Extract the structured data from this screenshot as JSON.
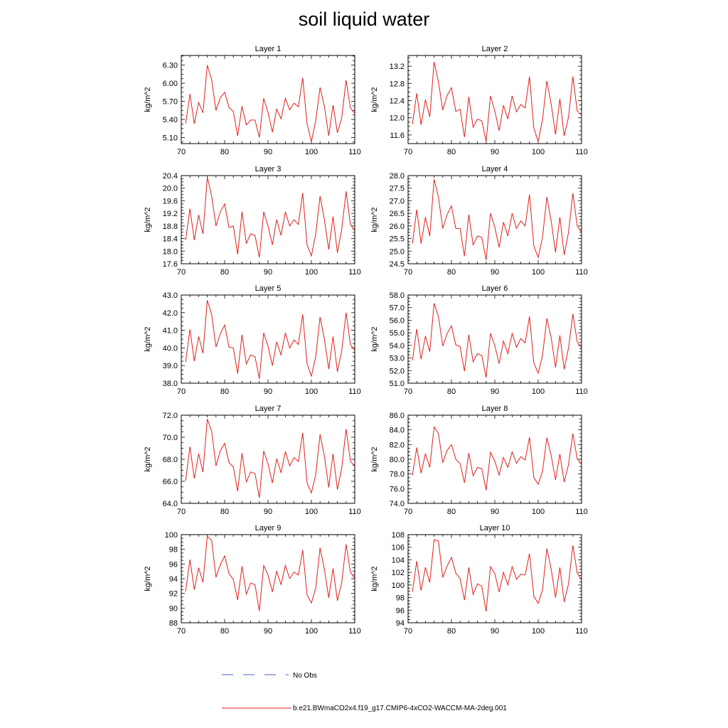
{
  "title": "soil liquid water",
  "legend": {
    "obs_label": "No Obs",
    "obs_color": "#4a5cc8",
    "model_label": "b.e21.BWmaCO2x4.f19_g17.CMIP6-4xCO2-WACCM-MA-2deg.001",
    "model_color": "#e0201b"
  },
  "chart_data": [
    {
      "type": "line",
      "title": "Layer 1",
      "ylabel": "kg/m^2",
      "xlim": [
        70,
        110
      ],
      "xticks": [
        70,
        80,
        90,
        100,
        110
      ],
      "ylim": [
        5.0,
        6.46
      ],
      "yticks": [
        "5.10",
        "5.40",
        "5.70",
        "6.00",
        "6.30"
      ],
      "ytick_values": [
        5.1,
        5.4,
        5.7,
        6.0,
        6.3
      ],
      "x": [
        71,
        72,
        73,
        74,
        75,
        76,
        77,
        78,
        79,
        80,
        81,
        82,
        83,
        84,
        85,
        86,
        87,
        88,
        89,
        90,
        91,
        92,
        93,
        94,
        95,
        96,
        97,
        98,
        99,
        100,
        101,
        102,
        103,
        104,
        105,
        106,
        107,
        108,
        109,
        110
      ],
      "values": [
        5.33,
        5.82,
        5.33,
        5.68,
        5.51,
        6.3,
        6.06,
        5.55,
        5.76,
        5.85,
        5.6,
        5.53,
        5.13,
        5.62,
        5.31,
        5.39,
        5.39,
        5.1,
        5.75,
        5.52,
        5.19,
        5.57,
        5.41,
        5.75,
        5.56,
        5.67,
        5.61,
        6.09,
        5.33,
        5.03,
        5.38,
        5.93,
        5.62,
        5.13,
        5.64,
        5.18,
        5.43,
        6.05,
        5.59,
        5.5
      ]
    },
    {
      "type": "line",
      "title": "Layer 2",
      "ylabel": "kg/m^2",
      "xlim": [
        70,
        110
      ],
      "xticks": [
        70,
        80,
        90,
        100,
        110
      ],
      "ylim": [
        11.4,
        13.45
      ],
      "yticks": [
        "11.6",
        "12.0",
        "12.4",
        "12.8",
        "13.2"
      ],
      "ytick_values": [
        11.6,
        12.0,
        12.4,
        12.8,
        13.2
      ],
      "x": [
        71,
        72,
        73,
        74,
        75,
        76,
        77,
        78,
        79,
        80,
        81,
        82,
        83,
        84,
        85,
        86,
        87,
        88,
        89,
        90,
        91,
        92,
        93,
        94,
        95,
        96,
        97,
        98,
        99,
        100,
        101,
        102,
        103,
        104,
        105,
        106,
        107,
        108,
        109,
        110
      ],
      "values": [
        11.85,
        12.57,
        11.84,
        12.42,
        12.02,
        13.3,
        12.84,
        12.18,
        12.52,
        12.7,
        12.15,
        12.2,
        11.55,
        12.49,
        11.78,
        11.97,
        11.93,
        11.45,
        12.51,
        12.16,
        11.7,
        12.29,
        11.97,
        12.51,
        12.14,
        12.31,
        12.23,
        12.96,
        11.76,
        11.45,
        11.96,
        12.86,
        12.32,
        11.61,
        12.44,
        11.58,
        12.02,
        12.96,
        12.16,
        12.06
      ]
    },
    {
      "type": "line",
      "title": "Layer 3",
      "ylabel": "kg/m^2",
      "xlim": [
        70,
        110
      ],
      "xticks": [
        70,
        80,
        90,
        100,
        110
      ],
      "ylim": [
        17.6,
        20.4
      ],
      "yticks": [
        "17.6",
        "18.0",
        "18.4",
        "18.8",
        "19.2",
        "19.6",
        "20.0",
        "20.4"
      ],
      "ytick_values": [
        17.6,
        18.0,
        18.4,
        18.8,
        19.2,
        19.6,
        20.0,
        20.4
      ],
      "x": [
        71,
        72,
        73,
        74,
        75,
        76,
        77,
        78,
        79,
        80,
        81,
        82,
        83,
        84,
        85,
        86,
        87,
        88,
        89,
        90,
        91,
        92,
        93,
        94,
        95,
        96,
        97,
        98,
        99,
        100,
        101,
        102,
        103,
        104,
        105,
        106,
        107,
        108,
        109,
        110
      ],
      "values": [
        18.35,
        19.35,
        18.35,
        19.15,
        18.55,
        20.35,
        19.75,
        18.8,
        19.25,
        19.5,
        18.75,
        18.8,
        17.9,
        19.25,
        18.25,
        18.55,
        18.5,
        17.8,
        19.25,
        18.8,
        18.2,
        19.0,
        18.5,
        19.25,
        18.8,
        19.0,
        18.85,
        19.85,
        18.2,
        17.85,
        18.55,
        19.75,
        19.0,
        18.05,
        19.1,
        17.95,
        18.7,
        19.9,
        18.85,
        18.65
      ]
    },
    {
      "type": "line",
      "title": "Layer 4",
      "ylabel": "kg/m^2",
      "xlim": [
        70,
        110
      ],
      "xticks": [
        70,
        80,
        90,
        100,
        110
      ],
      "ylim": [
        24.5,
        28.0
      ],
      "yticks": [
        "24.5",
        "25.0",
        "25.5",
        "26.0",
        "26.5",
        "27.0",
        "27.5",
        "28.0"
      ],
      "ytick_values": [
        24.5,
        25.0,
        25.5,
        26.0,
        26.5,
        27.0,
        27.5,
        28.0
      ],
      "x": [
        71,
        72,
        73,
        74,
        75,
        76,
        77,
        78,
        79,
        80,
        81,
        82,
        83,
        84,
        85,
        86,
        87,
        88,
        89,
        90,
        91,
        92,
        93,
        94,
        95,
        96,
        97,
        98,
        99,
        100,
        101,
        102,
        103,
        104,
        105,
        106,
        107,
        108,
        109,
        110
      ],
      "values": [
        25.3,
        26.65,
        25.3,
        26.35,
        25.6,
        27.85,
        27.15,
        25.9,
        26.45,
        26.8,
        25.9,
        25.9,
        24.8,
        26.45,
        25.25,
        25.6,
        25.55,
        24.65,
        26.5,
        25.95,
        25.15,
        26.15,
        25.6,
        26.5,
        25.9,
        26.2,
        26.0,
        27.25,
        25.2,
        24.75,
        25.55,
        27.15,
        26.2,
        24.95,
        26.35,
        24.85,
        25.75,
        27.3,
        26.0,
        25.75
      ]
    },
    {
      "type": "line",
      "title": "Layer 5",
      "ylabel": "kg/m^2",
      "xlim": [
        70,
        110
      ],
      "xticks": [
        70,
        80,
        90,
        100,
        110
      ],
      "ylim": [
        38.0,
        43.0
      ],
      "yticks": [
        "38.0",
        "39.0",
        "40.0",
        "41.0",
        "42.0",
        "43.0"
      ],
      "ytick_values": [
        38.0,
        39.0,
        40.0,
        41.0,
        42.0,
        43.0
      ],
      "x": [
        71,
        72,
        73,
        74,
        75,
        76,
        77,
        78,
        79,
        80,
        81,
        82,
        83,
        84,
        85,
        86,
        87,
        88,
        89,
        90,
        91,
        92,
        93,
        94,
        95,
        96,
        97,
        98,
        99,
        100,
        101,
        102,
        103,
        104,
        105,
        106,
        107,
        108,
        109,
        110
      ],
      "values": [
        39.2,
        41.05,
        39.25,
        40.65,
        39.7,
        42.7,
        41.9,
        40.05,
        40.8,
        41.3,
        40.05,
        40.0,
        38.55,
        40.75,
        39.1,
        39.6,
        39.5,
        38.25,
        40.85,
        40.1,
        39.0,
        40.35,
        39.6,
        40.85,
        40.0,
        40.45,
        40.2,
        41.9,
        39.1,
        38.4,
        39.5,
        41.75,
        40.5,
        38.8,
        40.65,
        38.65,
        39.85,
        42.0,
        40.2,
        39.85
      ]
    },
    {
      "type": "line",
      "title": "Layer 6",
      "ylabel": "kg/m^2",
      "xlim": [
        70,
        110
      ],
      "xticks": [
        70,
        80,
        90,
        100,
        110
      ],
      "ylim": [
        51.0,
        58.0
      ],
      "yticks": [
        "51.0",
        "52.0",
        "53.0",
        "54.0",
        "55.0",
        "56.0",
        "57.0",
        "58.0"
      ],
      "ytick_values": [
        51.0,
        52.0,
        53.0,
        54.0,
        55.0,
        56.0,
        57.0,
        58.0
      ],
      "x": [
        71,
        72,
        73,
        74,
        75,
        76,
        77,
        78,
        79,
        80,
        81,
        82,
        83,
        84,
        85,
        86,
        87,
        88,
        89,
        90,
        91,
        92,
        93,
        94,
        95,
        96,
        97,
        98,
        99,
        100,
        101,
        102,
        103,
        104,
        105,
        106,
        107,
        108,
        109,
        110
      ],
      "values": [
        52.8,
        55.3,
        52.9,
        54.75,
        53.5,
        57.35,
        56.3,
        53.95,
        54.95,
        55.55,
        54.05,
        53.9,
        51.95,
        54.85,
        52.7,
        53.35,
        53.2,
        51.45,
        54.95,
        54.0,
        52.55,
        54.35,
        53.35,
        54.95,
        53.85,
        54.55,
        54.2,
        56.3,
        52.6,
        51.8,
        53.2,
        56.15,
        54.6,
        52.25,
        54.8,
        52.1,
        53.8,
        56.5,
        54.3,
        53.8
      ]
    },
    {
      "type": "line",
      "title": "Layer 7",
      "ylabel": "kg/m^2",
      "xlim": [
        70,
        110
      ],
      "xticks": [
        70,
        80,
        90,
        100,
        110
      ],
      "ylim": [
        64.0,
        72.0
      ],
      "yticks": [
        "64.0",
        "66.0",
        "68.0",
        "70.0",
        "72.0"
      ],
      "ytick_values": [
        64.0,
        66.0,
        68.0,
        70.0,
        72.0
      ],
      "x": [
        71,
        72,
        73,
        74,
        75,
        76,
        77,
        78,
        79,
        80,
        81,
        82,
        83,
        84,
        85,
        86,
        87,
        88,
        89,
        90,
        91,
        92,
        93,
        94,
        95,
        96,
        97,
        98,
        99,
        100,
        101,
        102,
        103,
        104,
        105,
        106,
        107,
        108,
        109,
        110
      ],
      "values": [
        66.05,
        69.15,
        66.25,
        68.5,
        66.85,
        71.65,
        70.55,
        67.4,
        68.75,
        69.45,
        67.7,
        67.3,
        65.1,
        68.55,
        65.95,
        66.85,
        66.7,
        64.5,
        68.75,
        67.6,
        65.85,
        68.05,
        66.8,
        68.7,
        67.4,
        68.15,
        67.8,
        70.4,
        65.85,
        64.95,
        66.6,
        70.25,
        68.3,
        65.45,
        68.5,
        65.25,
        67.2,
        70.75,
        67.85,
        67.3
      ]
    },
    {
      "type": "line",
      "title": "Layer 8",
      "ylabel": "kg/m^2",
      "xlim": [
        70,
        110
      ],
      "xticks": [
        70,
        80,
        90,
        100,
        110
      ],
      "ylim": [
        74.0,
        86.0
      ],
      "yticks": [
        "74.0",
        "76.0",
        "78.0",
        "80.0",
        "82.0",
        "84.0",
        "86.0"
      ],
      "ytick_values": [
        74.0,
        76.0,
        78.0,
        80.0,
        82.0,
        84.0,
        86.0
      ],
      "x": [
        71,
        72,
        73,
        74,
        75,
        76,
        77,
        78,
        79,
        80,
        81,
        82,
        83,
        84,
        85,
        86,
        87,
        88,
        89,
        90,
        91,
        92,
        93,
        94,
        95,
        96,
        97,
        98,
        99,
        100,
        101,
        102,
        103,
        104,
        105,
        106,
        107,
        108,
        109,
        110
      ],
      "values": [
        77.8,
        81.6,
        78.1,
        80.75,
        78.9,
        84.4,
        83.5,
        79.55,
        81.2,
        82.0,
        80.0,
        79.4,
        76.8,
        80.85,
        77.75,
        78.9,
        78.7,
        75.8,
        80.95,
        79.75,
        77.85,
        80.25,
        78.9,
        81.0,
        79.45,
        80.35,
        79.9,
        83.0,
        77.5,
        76.6,
        78.35,
        82.95,
        80.5,
        77.2,
        80.7,
        76.9,
        79.3,
        83.5,
        80.05,
        79.35
      ]
    },
    {
      "type": "line",
      "title": "Layer 9",
      "ylabel": "kg/m^2",
      "xlim": [
        70,
        110
      ],
      "xticks": [
        70,
        80,
        90,
        100,
        110
      ],
      "ylim": [
        88,
        100
      ],
      "yticks": [
        "88",
        "90",
        "92",
        "94",
        "96",
        "98",
        "100"
      ],
      "ytick_values": [
        88,
        90,
        92,
        94,
        96,
        98,
        100
      ],
      "x": [
        71,
        72,
        73,
        74,
        75,
        76,
        77,
        78,
        79,
        80,
        81,
        82,
        83,
        84,
        85,
        86,
        87,
        88,
        89,
        90,
        91,
        92,
        93,
        94,
        95,
        96,
        97,
        98,
        99,
        100,
        101,
        102,
        103,
        104,
        105,
        106,
        107,
        108,
        109,
        110
      ],
      "values": [
        92.3,
        96.6,
        92.5,
        95.5,
        93.5,
        99.8,
        99.2,
        94.2,
        95.9,
        97.1,
        94.7,
        93.9,
        91.1,
        95.7,
        91.9,
        93.4,
        93.2,
        89.6,
        95.8,
        94.5,
        92.2,
        95.0,
        93.2,
        95.8,
        94.0,
        94.9,
        94.5,
        97.9,
        91.8,
        90.7,
        92.7,
        98.2,
        95.3,
        91.4,
        95.4,
        91.0,
        93.5,
        98.7,
        94.9,
        94.0
      ]
    },
    {
      "type": "line",
      "title": "Layer 10",
      "ylabel": "kg/m^2",
      "xlim": [
        70,
        110
      ],
      "xticks": [
        70,
        80,
        90,
        100,
        110
      ],
      "ylim": [
        94,
        108
      ],
      "yticks": [
        "94",
        "96",
        "98",
        "100",
        "102",
        "104",
        "106",
        "108"
      ],
      "ytick_values": [
        94,
        96,
        98,
        100,
        102,
        104,
        106,
        108
      ],
      "x": [
        71,
        72,
        73,
        74,
        75,
        76,
        77,
        78,
        79,
        80,
        81,
        82,
        83,
        84,
        85,
        86,
        87,
        88,
        89,
        90,
        91,
        92,
        93,
        94,
        95,
        96,
        97,
        98,
        99,
        100,
        101,
        102,
        103,
        104,
        105,
        106,
        107,
        108,
        109,
        110
      ],
      "values": [
        98.9,
        103.8,
        99.1,
        102.8,
        100.4,
        107.2,
        107.0,
        101.2,
        103.0,
        104.4,
        101.9,
        101.0,
        97.6,
        102.8,
        98.5,
        100.2,
        99.8,
        95.8,
        102.9,
        101.8,
        98.9,
        102.0,
        100.0,
        102.9,
        100.9,
        101.7,
        101.6,
        105.0,
        98.2,
        97.1,
        99.2,
        105.8,
        102.5,
        98.0,
        102.8,
        97.3,
        100.2,
        106.3,
        101.9,
        100.8
      ]
    }
  ]
}
